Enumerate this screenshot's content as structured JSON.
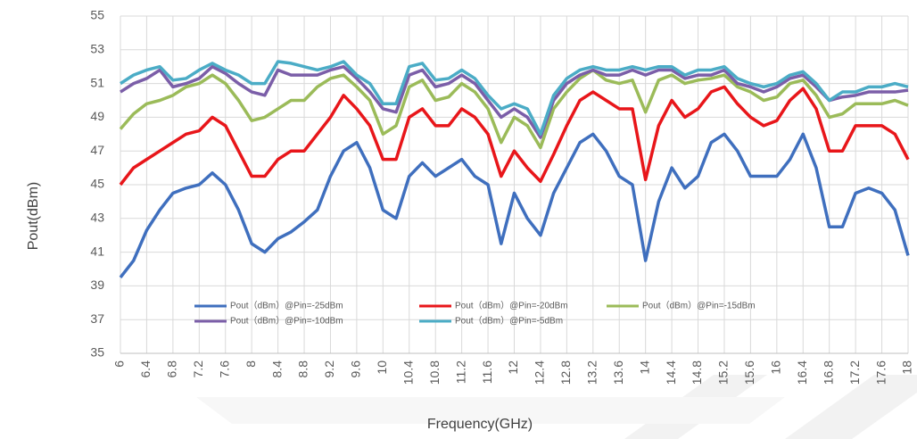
{
  "chart_data": {
    "type": "line",
    "x_label": "Frequency(GHz)",
    "y_label": "Pout(dBm)",
    "x": [
      6,
      6.2,
      6.4,
      6.6,
      6.8,
      7,
      7.2,
      7.4,
      7.6,
      7.8,
      8,
      8.2,
      8.4,
      8.6,
      8.8,
      9,
      9.2,
      9.4,
      9.6,
      9.8,
      10,
      10.2,
      10.4,
      10.6,
      10.8,
      11,
      11.2,
      11.4,
      11.6,
      11.8,
      12,
      12.2,
      12.4,
      12.6,
      12.8,
      13,
      13.2,
      13.4,
      13.6,
      13.8,
      14,
      14.2,
      14.4,
      14.6,
      14.8,
      15,
      15.2,
      15.4,
      15.6,
      15.8,
      16,
      16.2,
      16.4,
      16.6,
      16.8,
      17,
      17.2,
      17.4,
      17.6,
      17.8,
      18
    ],
    "series": [
      {
        "name": "Pout（dBm）@Pin=-25dBm",
        "color": "#3f6fbe",
        "values": [
          39.5,
          40.5,
          42.3,
          43.5,
          44.5,
          44.8,
          45.0,
          45.7,
          45.0,
          43.5,
          41.5,
          41.0,
          41.8,
          42.2,
          42.8,
          43.5,
          45.5,
          47.0,
          47.5,
          46.0,
          43.5,
          43.0,
          45.5,
          46.3,
          45.5,
          46.0,
          46.5,
          45.5,
          45.0,
          41.5,
          44.5,
          43.0,
          42.0,
          44.5,
          46.0,
          47.5,
          48.0,
          47.0,
          45.5,
          45.0,
          40.5,
          44.0,
          46.0,
          44.8,
          45.5,
          47.5,
          48.0,
          47.0,
          45.5,
          45.5,
          45.5,
          46.5,
          48.0,
          46.0,
          42.5,
          42.5,
          44.5,
          44.8,
          44.5,
          43.5,
          40.8
        ]
      },
      {
        "name": "Pout（dBm）@Pin=-20dBm",
        "color": "#e8161a",
        "values": [
          45.0,
          46.0,
          46.5,
          47.0,
          47.5,
          48.0,
          48.2,
          49.0,
          48.5,
          47.0,
          45.5,
          45.5,
          46.5,
          47.0,
          47.0,
          48.0,
          49.0,
          50.3,
          49.5,
          48.5,
          46.5,
          46.5,
          49.0,
          49.5,
          48.5,
          48.5,
          49.5,
          49.0,
          48.0,
          45.5,
          47.0,
          46.0,
          45.2,
          46.8,
          48.5,
          50.0,
          50.5,
          50.0,
          49.5,
          49.5,
          45.3,
          48.5,
          50.0,
          49.0,
          49.5,
          50.5,
          50.8,
          49.8,
          49.0,
          48.5,
          48.8,
          50.0,
          50.7,
          49.5,
          47.0,
          47.0,
          48.5,
          48.5,
          48.5,
          48.0,
          46.5
        ]
      },
      {
        "name": "Pout（dBm）@Pin=-15dBm",
        "color": "#9bbb59",
        "values": [
          48.3,
          49.2,
          49.8,
          50.0,
          50.3,
          50.8,
          51.0,
          51.5,
          51.0,
          50.0,
          48.8,
          49.0,
          49.5,
          50.0,
          50.0,
          50.8,
          51.3,
          51.5,
          50.8,
          50.0,
          48.0,
          48.5,
          50.8,
          51.2,
          50.0,
          50.2,
          51.0,
          50.5,
          49.5,
          47.5,
          49.0,
          48.5,
          47.2,
          49.5,
          50.5,
          51.3,
          51.8,
          51.2,
          51.0,
          51.2,
          49.3,
          51.2,
          51.5,
          51.0,
          51.2,
          51.3,
          51.5,
          50.8,
          50.5,
          50.0,
          50.2,
          51.0,
          51.2,
          50.3,
          49.0,
          49.2,
          49.8,
          49.8,
          49.8,
          50.0,
          49.7
        ]
      },
      {
        "name": "Pout（dBm）@Pin=-10dBm",
        "color": "#7b5ea8",
        "values": [
          50.5,
          51.0,
          51.3,
          51.8,
          50.8,
          51.0,
          51.3,
          52.0,
          51.6,
          51.0,
          50.5,
          50.3,
          51.8,
          51.5,
          51.5,
          51.5,
          51.8,
          52.0,
          51.3,
          50.5,
          49.5,
          49.3,
          51.5,
          51.8,
          50.8,
          51.0,
          51.5,
          51.0,
          50.0,
          49.0,
          49.5,
          49.0,
          47.8,
          50.0,
          51.0,
          51.5,
          51.8,
          51.5,
          51.5,
          51.8,
          51.5,
          51.8,
          51.8,
          51.3,
          51.5,
          51.5,
          51.8,
          51.0,
          50.8,
          50.5,
          50.8,
          51.3,
          51.5,
          50.8,
          50.0,
          50.2,
          50.3,
          50.5,
          50.5,
          50.5,
          50.6
        ]
      },
      {
        "name": "Pout（dBm）@Pin=-5dBm",
        "color": "#4bacc6",
        "values": [
          51.0,
          51.5,
          51.8,
          52.0,
          51.2,
          51.3,
          51.8,
          52.2,
          51.8,
          51.5,
          51.0,
          51.0,
          52.3,
          52.2,
          52.0,
          51.8,
          52.0,
          52.3,
          51.5,
          51.0,
          49.8,
          49.8,
          52.0,
          52.2,
          51.2,
          51.3,
          51.8,
          51.3,
          50.3,
          49.5,
          49.8,
          49.5,
          48.0,
          50.3,
          51.3,
          51.8,
          52.0,
          51.8,
          51.8,
          52.0,
          51.8,
          52.0,
          52.0,
          51.5,
          51.8,
          51.8,
          52.0,
          51.3,
          51.0,
          50.8,
          51.0,
          51.5,
          51.7,
          51.0,
          50.0,
          50.5,
          50.5,
          50.8,
          50.8,
          51.0,
          50.8
        ]
      }
    ],
    "xlim": [
      6,
      18
    ],
    "xticks": [
      6,
      6.4,
      6.8,
      7.2,
      7.6,
      8,
      8.4,
      8.8,
      9.2,
      9.6,
      10,
      10.4,
      10.8,
      11.2,
      11.6,
      12,
      12.4,
      12.8,
      13.2,
      13.6,
      14,
      14.4,
      14.8,
      15.2,
      15.6,
      16,
      16.4,
      16.8,
      17.2,
      17.6,
      18
    ],
    "ylim": [
      35,
      55
    ],
    "yticks": [
      35,
      37,
      39,
      41,
      43,
      45,
      47,
      49,
      51,
      53,
      55
    ],
    "grid": true
  }
}
